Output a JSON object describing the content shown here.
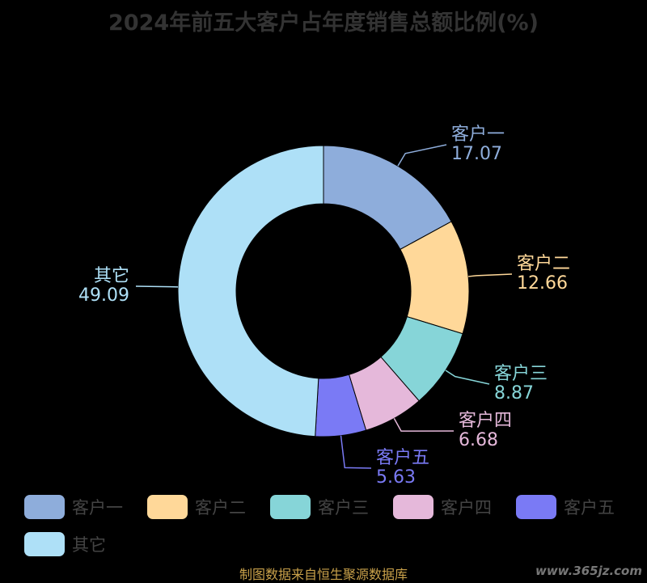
{
  "chart_data": {
    "type": "pie",
    "title": "2024年前五大客户占年度销售总额比例(%)",
    "categories": [
      "客户一",
      "客户二",
      "客户三",
      "客户四",
      "客户五",
      "其它"
    ],
    "values": [
      17.07,
      12.66,
      8.87,
      6.68,
      5.63,
      49.09
    ],
    "value_labels": [
      "17.07",
      "12.66",
      "8.87",
      "6.68",
      "5.63",
      "49.09"
    ],
    "colors": [
      "#8eaddb",
      "#ffd899",
      "#86d5d8",
      "#e5b8da",
      "#7a7af5",
      "#aee0f7"
    ],
    "donut": true,
    "legend_position": "bottom"
  },
  "source_note": "制图数据来自恒生聚源数据库",
  "watermark": "www.365jz.com"
}
